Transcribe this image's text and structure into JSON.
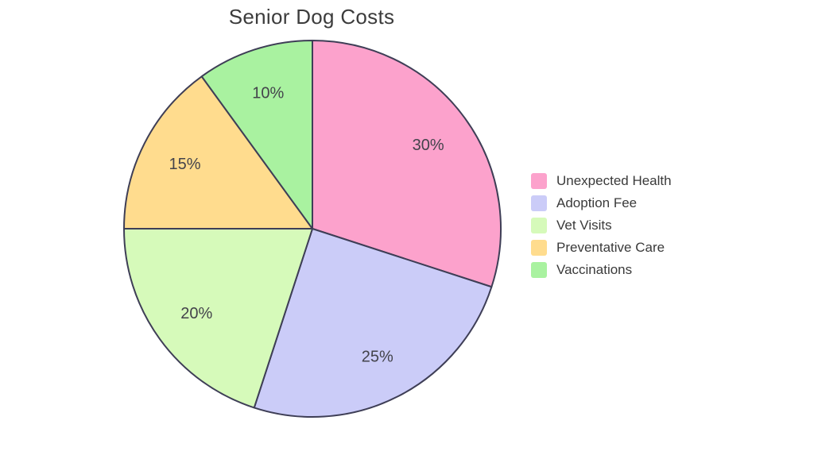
{
  "chart_data": {
    "type": "pie",
    "title": "Senior Dog Costs",
    "slices": [
      {
        "label": "Unexpected Health",
        "value": 30,
        "pct_label": "30%",
        "color": "#FCA2CC"
      },
      {
        "label": "Adoption Fee",
        "value": 25,
        "pct_label": "25%",
        "color": "#CBCCF8"
      },
      {
        "label": "Vet Visits",
        "value": 20,
        "pct_label": "20%",
        "color": "#D6FABA"
      },
      {
        "label": "Preventative Care",
        "value": 15,
        "pct_label": "15%",
        "color": "#FFDC8E"
      },
      {
        "label": "Vaccinations",
        "value": 10,
        "pct_label": "10%",
        "color": "#A9F2A0"
      }
    ],
    "start_angle_deg": 0,
    "direction": "clockwise",
    "legend_position": "right",
    "pct_distance": 0.76,
    "stroke_color": "#3E3E56",
    "pct_label_color": "#43434B",
    "title_color": "#3C3C3C",
    "legend_text_color": "#3A3A3A",
    "background_color": "#FFFFFF"
  }
}
